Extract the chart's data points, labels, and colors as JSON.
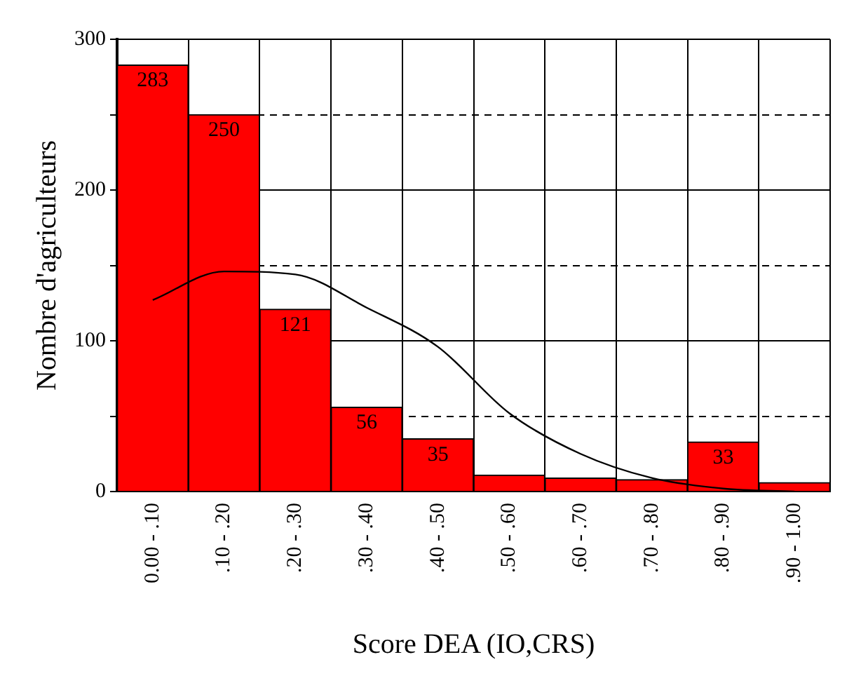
{
  "chart_data": {
    "type": "bar",
    "xlabel": "Score DEA (IO,CRS)",
    "ylabel": "Nombre d'agriculteurs",
    "categories": [
      "0.00 - .10",
      ".10 - .20",
      ".20 - .30",
      ".30 - .40",
      ".40 - .50",
      ".50 - .60",
      ".60 - .70",
      ".70 - .80",
      ".80 - .90",
      ".90 - 1.00"
    ],
    "series": [
      {
        "color": "#ff0000",
        "values": [
          283,
          250,
          121,
          56,
          35,
          11,
          9,
          8,
          33,
          6
        ],
        "value_labels": [
          "283",
          "250",
          "121",
          "56",
          "35",
          null,
          null,
          null,
          "33",
          null
        ]
      },
      {
        "type": "line",
        "color": "#000000",
        "values": [
          127,
          146,
          144,
          122,
          96,
          52,
          25,
          9,
          2,
          0
        ]
      }
    ],
    "ylim": [
      0,
      300
    ],
    "yticks": [
      0,
      {
        "value": 50,
        "label": null
      },
      100,
      {
        "value": 150,
        "label": null
      },
      200,
      {
        "value": 250,
        "label": null
      },
      300
    ],
    "grid": true,
    "legend": false,
    "marker": "none",
    "line_style": "solid"
  }
}
